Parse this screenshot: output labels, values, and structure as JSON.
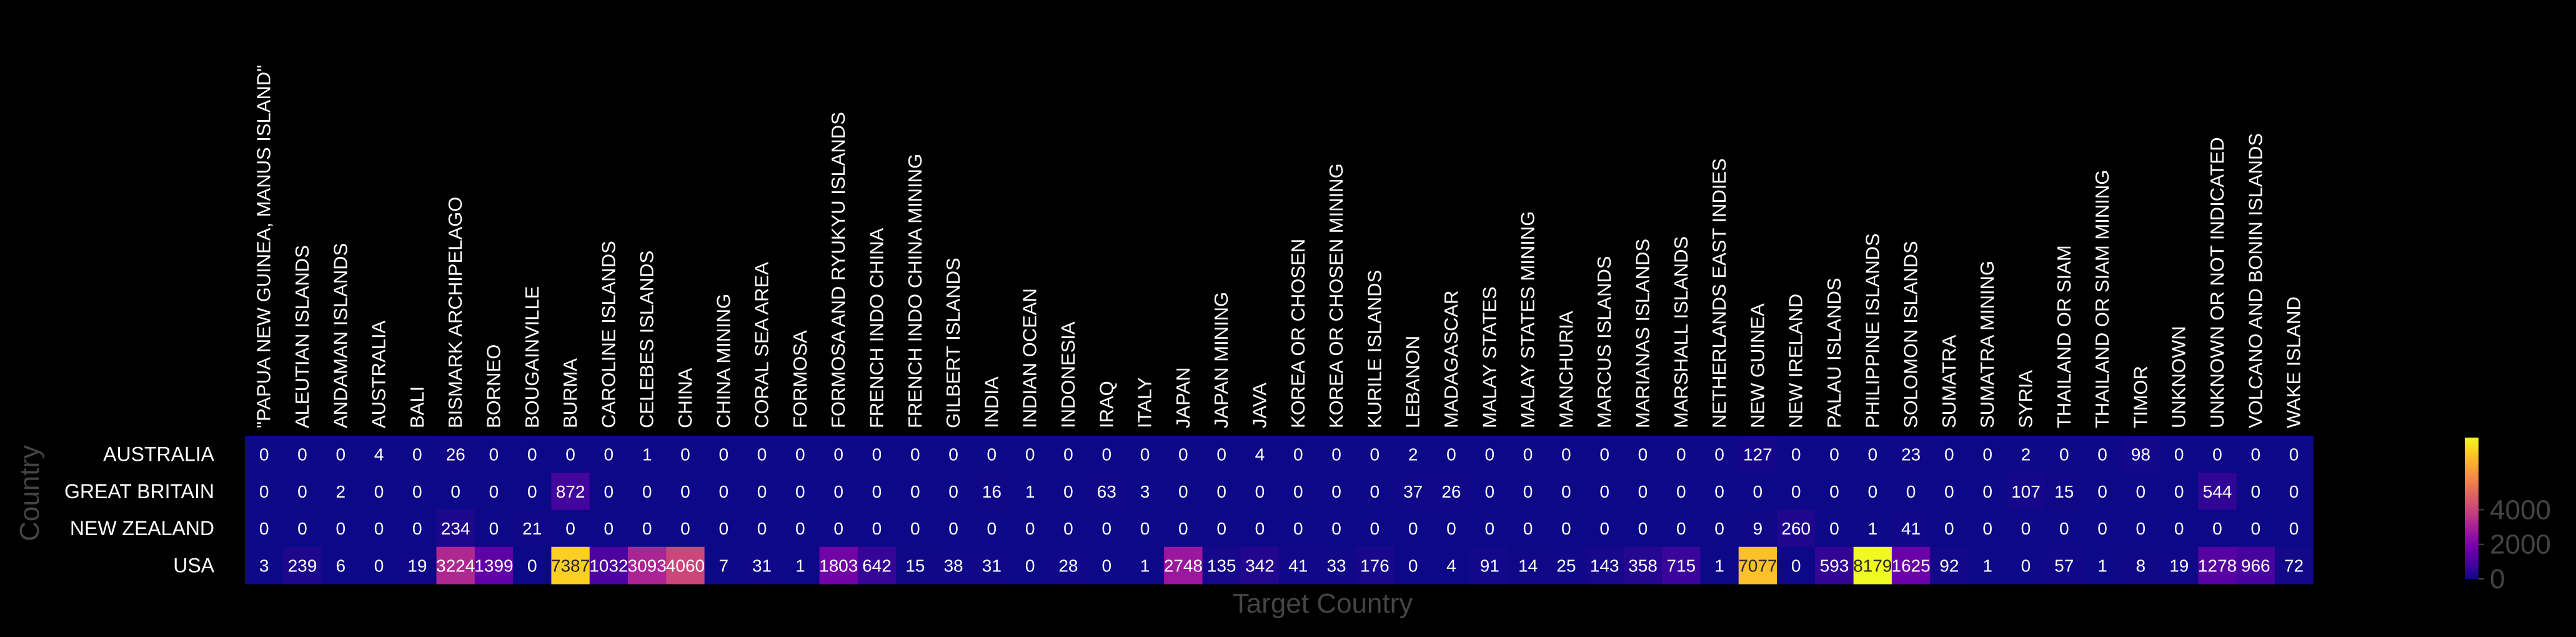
{
  "chart_data": {
    "type": "heatmap",
    "title": "",
    "xlabel": "Target Country",
    "ylabel": "Country",
    "colormap": "plasma",
    "color_range": [
      0,
      8179
    ],
    "colorbar_ticks": [
      "0",
      "2000",
      "4000"
    ],
    "columns": [
      "\"PAPUA NEW GUINEA, MANUS ISLAND\"",
      "ALEUTIAN ISLANDS",
      "ANDAMAN ISLANDS",
      "AUSTRALIA",
      "BALI",
      "BISMARK ARCHIPELAGO",
      "BORNEO",
      "BOUGAINVILLE",
      "BURMA",
      "CAROLINE ISLANDS",
      "CELEBES ISLANDS",
      "CHINA",
      "CHINA MINING",
      "CORAL SEA AREA",
      "FORMOSA",
      "FORMOSA AND RYUKYU ISLANDS",
      "FRENCH INDO CHINA",
      "FRENCH INDO CHINA MINING",
      "GILBERT ISLANDS",
      "INDIA",
      "INDIAN OCEAN",
      "INDONESIA",
      "IRAQ",
      "ITALY",
      "JAPAN",
      "JAPAN MINING",
      "JAVA",
      "KOREA OR CHOSEN",
      "KOREA OR CHOSEN MINING",
      "KURILE ISLANDS",
      "LEBANON",
      "MADAGASCAR",
      "MALAY STATES",
      "MALAY STATES MINING",
      "MANCHURIA",
      "MARCUS ISLANDS",
      "MARIANAS ISLANDS",
      "MARSHALL ISLANDS",
      "NETHERLANDS EAST INDIES",
      "NEW GUINEA",
      "NEW IRELAND",
      "PALAU ISLANDS",
      "PHILIPPINE ISLANDS",
      "SOLOMON ISLANDS",
      "SUMATRA",
      "SUMATRA MINING",
      "SYRIA",
      "THAILAND OR SIAM",
      "THAILAND OR SIAM MINING",
      "TIMOR",
      "UNKNOWN",
      "UNKNOWN OR NOT INDICATED",
      "VOLCANO AND BONIN ISLANDS",
      "WAKE ISLAND"
    ],
    "rows": [
      "AUSTRALIA",
      "GREAT BRITAIN",
      "NEW ZEALAND",
      "USA"
    ],
    "values": [
      [
        0,
        0,
        0,
        4,
        0,
        26,
        0,
        0,
        0,
        0,
        1,
        0,
        0,
        0,
        0,
        0,
        0,
        0,
        0,
        0,
        0,
        0,
        0,
        0,
        0,
        0,
        4,
        0,
        0,
        0,
        2,
        0,
        0,
        0,
        0,
        0,
        0,
        0,
        0,
        127,
        0,
        0,
        0,
        23,
        0,
        0,
        2,
        0,
        0,
        98,
        0,
        0,
        0,
        0
      ],
      [
        0,
        0,
        2,
        0,
        0,
        0,
        0,
        0,
        872,
        0,
        0,
        0,
        0,
        0,
        0,
        0,
        0,
        0,
        0,
        16,
        1,
        0,
        63,
        3,
        0,
        0,
        0,
        0,
        0,
        0,
        37,
        26,
        0,
        0,
        0,
        0,
        0,
        0,
        0,
        0,
        0,
        0,
        0,
        0,
        0,
        0,
        107,
        15,
        0,
        0,
        0,
        544,
        0,
        0
      ],
      [
        0,
        0,
        0,
        0,
        0,
        234,
        0,
        21,
        0,
        0,
        0,
        0,
        0,
        0,
        0,
        0,
        0,
        0,
        0,
        0,
        0,
        0,
        0,
        0,
        0,
        0,
        0,
        0,
        0,
        0,
        0,
        0,
        0,
        0,
        0,
        0,
        0,
        0,
        0,
        9,
        260,
        0,
        1,
        41,
        0,
        0,
        0,
        0,
        0,
        0,
        0,
        0,
        0,
        0
      ],
      [
        3,
        239,
        6,
        0,
        19,
        3224,
        1399,
        0,
        7387,
        1032,
        3093,
        4060,
        7,
        31,
        1,
        1803,
        642,
        15,
        38,
        31,
        0,
        28,
        0,
        1,
        2748,
        135,
        342,
        41,
        33,
        176,
        0,
        4,
        91,
        14,
        25,
        143,
        358,
        715,
        1,
        7077,
        0,
        593,
        8179,
        1625,
        92,
        1,
        0,
        57,
        1,
        8,
        19,
        1278,
        966,
        72
      ]
    ]
  }
}
